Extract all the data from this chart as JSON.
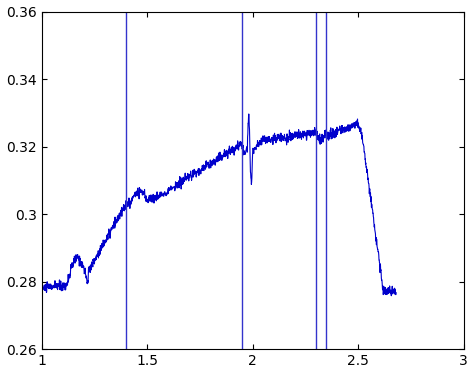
{
  "xlim": [
    1,
    3
  ],
  "ylim": [
    0.26,
    0.36
  ],
  "xticks": [
    1,
    1.5,
    2,
    2.5,
    3
  ],
  "yticks": [
    0.26,
    0.28,
    0.3,
    0.32,
    0.34,
    0.36
  ],
  "vlines": [
    1.4,
    1.95,
    2.3,
    2.35
  ],
  "line_color": "#0000cc",
  "vline_color": "#3333cc",
  "bg_color": "#ffffff"
}
